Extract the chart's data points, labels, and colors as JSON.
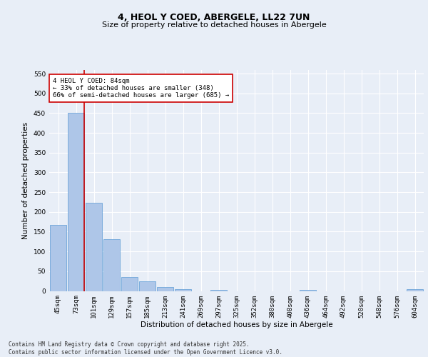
{
  "title": "4, HEOL Y COED, ABERGELE, LL22 7UN",
  "subtitle": "Size of property relative to detached houses in Abergele",
  "xlabel": "Distribution of detached houses by size in Abergele",
  "ylabel": "Number of detached properties",
  "categories": [
    "45sqm",
    "73sqm",
    "101sqm",
    "129sqm",
    "157sqm",
    "185sqm",
    "213sqm",
    "241sqm",
    "269sqm",
    "297sqm",
    "325sqm",
    "352sqm",
    "380sqm",
    "408sqm",
    "436sqm",
    "464sqm",
    "492sqm",
    "520sqm",
    "548sqm",
    "576sqm",
    "604sqm"
  ],
  "values": [
    167,
    450,
    224,
    131,
    36,
    24,
    10,
    5,
    0,
    2,
    0,
    0,
    0,
    0,
    3,
    0,
    0,
    0,
    0,
    0,
    4
  ],
  "bar_color": "#aec6e8",
  "bar_edge_color": "#5b9bd5",
  "ref_line_x": 1.45,
  "ref_line_color": "#cc0000",
  "annotation_text": "4 HEOL Y COED: 84sqm\n← 33% of detached houses are smaller (348)\n66% of semi-detached houses are larger (685) →",
  "annotation_box_color": "#ffffff",
  "annotation_box_edge_color": "#cc0000",
  "ylim": [
    0,
    560
  ],
  "yticks": [
    0,
    50,
    100,
    150,
    200,
    250,
    300,
    350,
    400,
    450,
    500,
    550
  ],
  "footer": "Contains HM Land Registry data © Crown copyright and database right 2025.\nContains public sector information licensed under the Open Government Licence v3.0.",
  "title_fontsize": 9,
  "subtitle_fontsize": 8,
  "axis_label_fontsize": 7.5,
  "tick_fontsize": 6.5,
  "annotation_fontsize": 6.5,
  "footer_fontsize": 5.5,
  "background_color": "#e8eef7",
  "plot_background_color": "#e8eef7",
  "grid_color": "#ffffff"
}
